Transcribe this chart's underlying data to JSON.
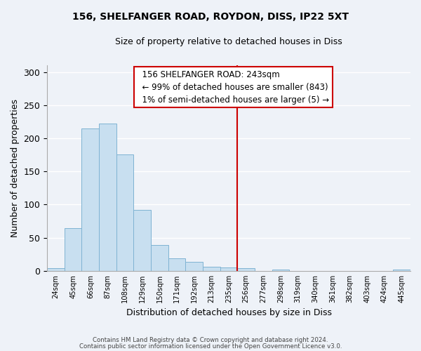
{
  "title1": "156, SHELFANGER ROAD, ROYDON, DISS, IP22 5XT",
  "title2": "Size of property relative to detached houses in Diss",
  "xlabel": "Distribution of detached houses by size in Diss",
  "ylabel": "Number of detached properties",
  "bin_labels": [
    "24sqm",
    "45sqm",
    "66sqm",
    "87sqm",
    "108sqm",
    "129sqm",
    "150sqm",
    "171sqm",
    "192sqm",
    "213sqm",
    "235sqm",
    "256sqm",
    "277sqm",
    "298sqm",
    "319sqm",
    "340sqm",
    "361sqm",
    "382sqm",
    "403sqm",
    "424sqm",
    "445sqm"
  ],
  "bar_heights": [
    4,
    65,
    215,
    222,
    176,
    92,
    39,
    19,
    14,
    6,
    5,
    4,
    0,
    2,
    0,
    0,
    0,
    0,
    0,
    0,
    2
  ],
  "bar_color": "#c8dff0",
  "bar_edge_color": "#7fb3d3",
  "vline_x": 11.0,
  "vline_color": "#cc0000",
  "annotation_title": "156 SHELFANGER ROAD: 243sqm",
  "annotation_line1": "← 99% of detached houses are smaller (843)",
  "annotation_line2": "1% of semi-detached houses are larger (5) →",
  "annotation_box_color": "#ffffff",
  "annotation_box_edge": "#cc0000",
  "ylim": [
    0,
    310
  ],
  "yticks": [
    0,
    50,
    100,
    150,
    200,
    250,
    300
  ],
  "footer1": "Contains HM Land Registry data © Crown copyright and database right 2024.",
  "footer2": "Contains public sector information licensed under the Open Government Licence v3.0.",
  "bg_color": "#eef2f8"
}
